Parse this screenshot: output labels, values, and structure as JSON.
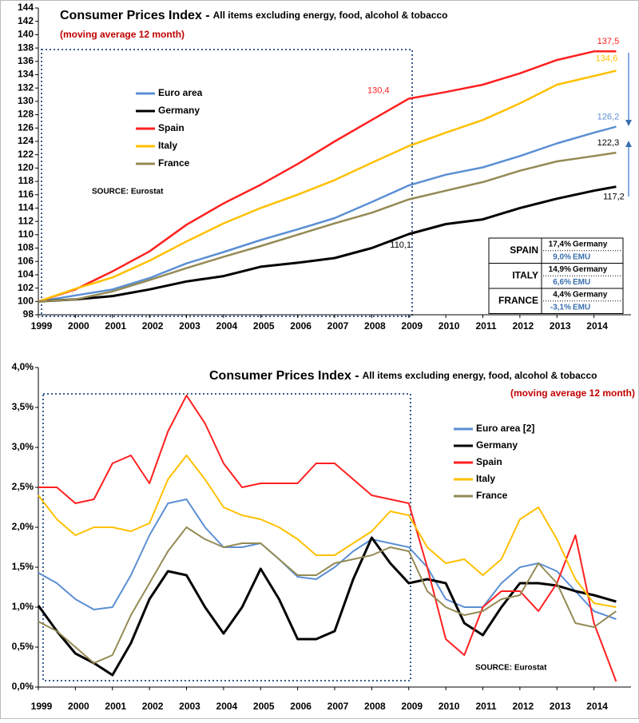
{
  "chart_data": [
    {
      "type": "line",
      "title": "Consumer Prices Index -",
      "title_detail": "All items excluding energy, food, alcohol & tobacco",
      "subtitle": "(moving average 12 month)",
      "source": "SOURCE: Eurostat",
      "x": [
        1999,
        2000,
        2001,
        2002,
        2003,
        2004,
        2005,
        2006,
        2007,
        2008,
        2009,
        2010,
        2011,
        2012,
        2013,
        2014,
        2014.6
      ],
      "xlim": [
        1999,
        2015
      ],
      "xticks": [
        1999,
        2000,
        2001,
        2002,
        2003,
        2004,
        2005,
        2006,
        2007,
        2008,
        2009,
        2010,
        2011,
        2012,
        2013,
        2014
      ],
      "ylim": [
        98,
        144
      ],
      "yticks": [
        98,
        100,
        102,
        104,
        106,
        108,
        110,
        112,
        114,
        116,
        118,
        120,
        122,
        124,
        126,
        128,
        130,
        132,
        134,
        136,
        138,
        140,
        142,
        144
      ],
      "series": [
        {
          "name": "Euro area",
          "color": "#5b8fd4",
          "values": [
            100,
            100.9,
            101.8,
            103.5,
            105.7,
            107.4,
            109.2,
            110.8,
            112.5,
            114.9,
            117.4,
            119,
            120.1,
            121.8,
            123.7,
            125.3,
            126.2
          ]
        },
        {
          "name": "Germany",
          "color": "#000000",
          "values": [
            100,
            100.3,
            100.8,
            101.8,
            103,
            103.8,
            105.2,
            105.8,
            106.5,
            108,
            110.1,
            111.6,
            112.3,
            114,
            115.4,
            116.6,
            117.2
          ]
        },
        {
          "name": "Spain",
          "color": "#ff2020",
          "values": [
            100,
            101.8,
            104.5,
            107.5,
            111.5,
            114.7,
            117.5,
            120.6,
            124,
            127.2,
            130.4,
            131.4,
            132.5,
            134.2,
            136.2,
            137.5,
            137.5
          ]
        },
        {
          "name": "Italy",
          "color": "#ffc000",
          "values": [
            100,
            101.9,
            103.6,
            106.1,
            109,
            111.7,
            114,
            116,
            118.2,
            120.8,
            123.3,
            125.3,
            127.2,
            129.7,
            132.5,
            133.8,
            134.6
          ]
        },
        {
          "name": "France",
          "color": "#948a54",
          "values": [
            100,
            100.3,
            101.5,
            103.2,
            105,
            106.7,
            108.3,
            110,
            111.7,
            113.3,
            115.3,
            116.6,
            117.9,
            119.6,
            121,
            121.8,
            122.3
          ]
        }
      ],
      "annotations": [
        {
          "label": "130,4",
          "value": 130.4,
          "x": 2009,
          "color": "#ff2020"
        },
        {
          "label": "137,5",
          "value": 137.5,
          "x": 2014.6,
          "color": "#ff2020"
        },
        {
          "label": "134,6",
          "value": 134.6,
          "x": 2014.6,
          "color": "#ffc000"
        },
        {
          "label": "126,2",
          "value": 126.2,
          "x": 2014.6,
          "color": "#5b8fd4"
        },
        {
          "label": "122,3",
          "value": 122.3,
          "x": 2014.6,
          "color": "#000000"
        },
        {
          "label": "117,2",
          "value": 117.2,
          "x": 2014.6,
          "color": "#000000"
        },
        {
          "label": "110,1",
          "value": 110.1,
          "x": 2009,
          "color": "#000000"
        }
      ],
      "table": {
        "rows": [
          {
            "country": "SPAIN",
            "vs_germany": "17,4%",
            "germany": "Germany",
            "vs_emu": "9,0%",
            "emu": "EMU"
          },
          {
            "country": "ITALY",
            "vs_germany": "14,9%",
            "germany": "Germany",
            "vs_emu": "6,6%",
            "emu": "EMU"
          },
          {
            "country": "FRANCE",
            "vs_germany": "4,4%",
            "germany": "Germany",
            "vs_emu": "-3,1%",
            "emu": "EMU"
          }
        ]
      }
    },
    {
      "type": "line",
      "title": "Consumer Prices Index -",
      "title_detail": "All items excluding energy, food, alcohol & tobacco",
      "subtitle": "(moving average 12 month)",
      "source": "SOURCE: Eurostat",
      "x": [
        1999,
        1999.5,
        2000,
        2000.5,
        2001,
        2001.5,
        2002,
        2002.5,
        2003,
        2003.5,
        2004,
        2004.5,
        2005,
        2005.5,
        2006,
        2006.5,
        2007,
        2007.5,
        2008,
        2008.5,
        2009,
        2009.5,
        2010,
        2010.5,
        2011,
        2011.5,
        2012,
        2012.5,
        2013,
        2013.5,
        2014,
        2014.6
      ],
      "xlim": [
        1999,
        2015
      ],
      "xticks": [
        1999,
        2000,
        2001,
        2002,
        2003,
        2004,
        2005,
        2006,
        2007,
        2008,
        2009,
        2010,
        2011,
        2012,
        2013,
        2014
      ],
      "ylim": [
        0,
        4
      ],
      "yticks": [
        {
          "value": 0,
          "label": "0,0%"
        },
        {
          "value": 0.5,
          "label": "0,5%"
        },
        {
          "value": 1,
          "label": "1,0%"
        },
        {
          "value": 1.5,
          "label": "1,5%"
        },
        {
          "value": 2,
          "label": "2,0%"
        },
        {
          "value": 2.5,
          "label": "2,5%"
        },
        {
          "value": 3,
          "label": "3,0%"
        },
        {
          "value": 3.5,
          "label": "3,5%"
        },
        {
          "value": 4,
          "label": "4,0%"
        }
      ],
      "series": [
        {
          "name": "Euro area [2]",
          "color": "#5b8fd4",
          "values": [
            1.43,
            1.3,
            1.1,
            0.97,
            1.0,
            1.4,
            1.9,
            2.3,
            2.35,
            2.0,
            1.75,
            1.75,
            1.8,
            1.6,
            1.38,
            1.35,
            1.5,
            1.7,
            1.85,
            1.8,
            1.75,
            1.5,
            1.1,
            1.0,
            1.0,
            1.3,
            1.5,
            1.55,
            1.45,
            1.2,
            0.95,
            0.85
          ]
        },
        {
          "name": "Germany",
          "color": "#000000",
          "values": [
            1.02,
            0.7,
            0.42,
            0.3,
            0.15,
            0.55,
            1.1,
            1.45,
            1.4,
            1.0,
            0.67,
            1.0,
            1.48,
            1.1,
            0.6,
            0.6,
            0.7,
            1.35,
            1.87,
            1.55,
            1.3,
            1.35,
            1.3,
            0.8,
            0.65,
            1.0,
            1.3,
            1.3,
            1.27,
            1.2,
            1.15,
            1.07
          ]
        },
        {
          "name": "Spain",
          "color": "#ff2020",
          "values": [
            2.5,
            2.5,
            2.3,
            2.35,
            2.8,
            2.9,
            2.55,
            3.2,
            3.65,
            3.3,
            2.8,
            2.5,
            2.55,
            2.55,
            2.55,
            2.8,
            2.8,
            2.6,
            2.4,
            2.35,
            2.3,
            1.5,
            0.6,
            0.4,
            1.0,
            1.2,
            1.2,
            0.95,
            1.3,
            1.9,
            0.8,
            0.07
          ]
        },
        {
          "name": "Italy",
          "color": "#ffc000",
          "values": [
            2.4,
            2.1,
            1.9,
            2.0,
            2.0,
            1.95,
            2.05,
            2.6,
            2.9,
            2.6,
            2.25,
            2.15,
            2.1,
            2.0,
            1.85,
            1.65,
            1.65,
            1.8,
            1.95,
            2.2,
            2.15,
            1.75,
            1.55,
            1.6,
            1.4,
            1.6,
            2.1,
            2.25,
            1.85,
            1.35,
            1.05,
            1.0
          ]
        },
        {
          "name": "France",
          "color": "#948a54",
          "values": [
            0.82,
            0.7,
            0.5,
            0.3,
            0.4,
            0.9,
            1.3,
            1.7,
            2.0,
            1.85,
            1.75,
            1.8,
            1.8,
            1.6,
            1.4,
            1.4,
            1.55,
            1.6,
            1.65,
            1.75,
            1.7,
            1.2,
            1.0,
            0.9,
            0.95,
            1.1,
            1.15,
            1.55,
            1.3,
            0.8,
            0.75,
            0.95
          ]
        }
      ]
    }
  ]
}
